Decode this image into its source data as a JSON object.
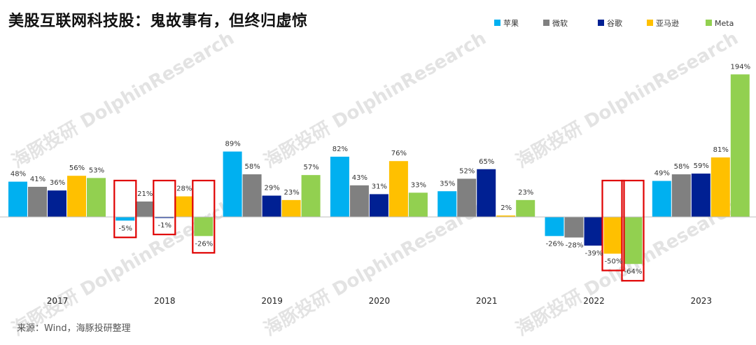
{
  "chart_data": {
    "type": "bar",
    "title": "美股互联网科技股：鬼故事有，但终归虚惊",
    "source": "来源：Wind，海豚投研整理",
    "watermark": "海豚投研 DolphinResearch",
    "categories": [
      "2017",
      "2018",
      "2019",
      "2020",
      "2021",
      "2022",
      "2023"
    ],
    "series": [
      {
        "name": "苹果",
        "color": "#00b0f0",
        "values": [
          48,
          -5,
          89,
          82,
          35,
          -26,
          49
        ]
      },
      {
        "name": "微软",
        "color": "#808080",
        "values": [
          41,
          21,
          58,
          43,
          52,
          -28,
          58
        ]
      },
      {
        "name": "谷歌",
        "color": "#002093",
        "values": [
          36,
          -1,
          29,
          31,
          65,
          -39,
          59
        ]
      },
      {
        "name": "亚马逊",
        "color": "#ffc000",
        "values": [
          56,
          28,
          23,
          76,
          2,
          -50,
          81
        ]
      },
      {
        "name": "Meta",
        "color": "#92d050",
        "values": [
          53,
          -26,
          57,
          33,
          23,
          -64,
          194
        ]
      }
    ],
    "data_labels": [
      [
        "48%",
        "-5%",
        "89%",
        "82%",
        "35%",
        "-26%",
        "49%"
      ],
      [
        "41%",
        "21%",
        "58%",
        "43%",
        "52%",
        "-28%",
        "58%"
      ],
      [
        "36%",
        "-1%",
        "29%",
        "31%",
        "65%",
        "-39%",
        "59%"
      ],
      [
        "56%",
        "28%",
        "23%",
        "76%",
        "2%",
        "-50%",
        "81%"
      ],
      [
        "53%",
        "-26%",
        "57%",
        "33%",
        "23%",
        "-64%",
        "194%"
      ]
    ],
    "highlighted": [
      [
        1,
        0
      ],
      [
        1,
        2
      ],
      [
        1,
        4
      ],
      [
        5,
        3
      ],
      [
        5,
        4
      ]
    ],
    "highlight_color": "#e00000",
    "ylim": [
      -75,
      210
    ],
    "legend_position": "top-right",
    "grid": false
  }
}
